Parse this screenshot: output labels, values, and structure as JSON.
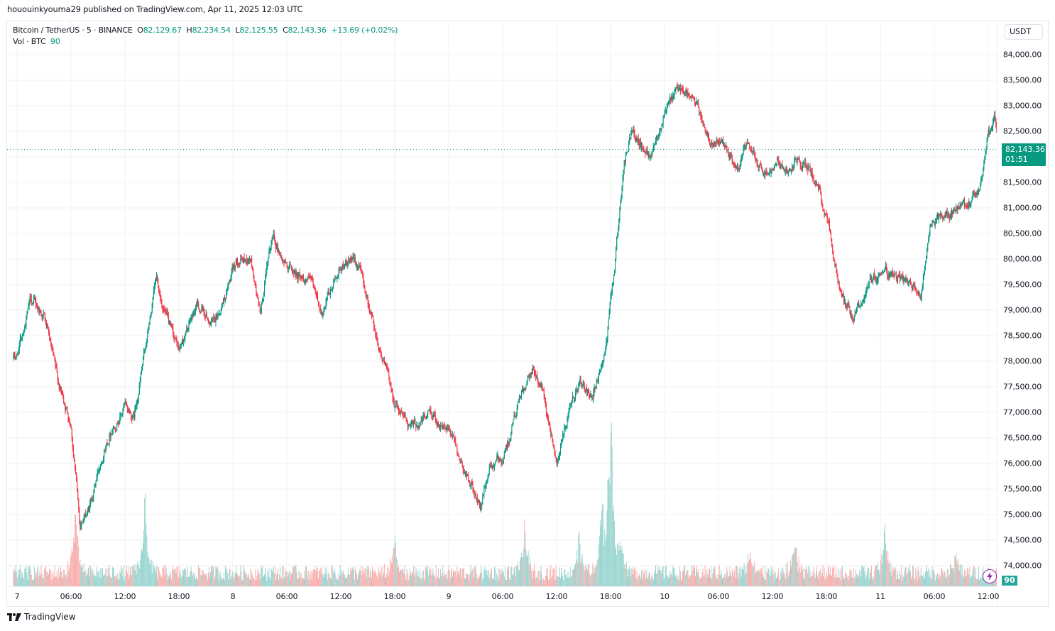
{
  "header": {
    "publish_line": "hououinkyouma29 published on TradingView.com, Apr 11, 2025 12:03 UTC"
  },
  "legend": {
    "symbol": "Bitcoin / TetherUS · 5 · BINANCE",
    "open_label": "O",
    "open": "82,129.67",
    "high_label": "H",
    "high": "82,234.54",
    "low_label": "L",
    "low": "82,125.55",
    "close_label": "C",
    "close": "82,143.36",
    "change": "+13.69 (+0.02%)",
    "vol_label": "Vol · BTC",
    "vol_value": "90"
  },
  "price_axis": {
    "currency": "USDT",
    "labels": [
      "84,000.00",
      "83,500.00",
      "83,000.00",
      "82,500.00",
      "82,000.00",
      "81,500.00",
      "81,000.00",
      "80,500.00",
      "80,000.00",
      "79,500.00",
      "79,000.00",
      "78,500.00",
      "78,000.00",
      "77,500.00",
      "77,000.00",
      "76,500.00",
      "76,000.00",
      "75,500.00",
      "75,000.00",
      "74,500.00",
      "74,000.00"
    ],
    "last_price": "82,143.36",
    "countdown": "01:51",
    "volume_badge": "90"
  },
  "time_axis": {
    "labels": [
      "7",
      "06:00",
      "12:00",
      "18:00",
      "8",
      "06:00",
      "12:00",
      "18:00",
      "9",
      "06:00",
      "12:00",
      "18:00",
      "10",
      "06:00",
      "12:00",
      "18:00",
      "11",
      "06:00",
      "12:00"
    ]
  },
  "colors": {
    "up": "#089981",
    "down": "#F23645",
    "vol_up": "#92D2CC",
    "vol_down": "#F7A9A7",
    "grid": "#f0f1f3",
    "last_price_bg": "#089981"
  },
  "footer": {
    "brand": "TradingView"
  },
  "chart_data": {
    "type": "candlestick",
    "title": "Bitcoin / TetherUS · 5 · BINANCE",
    "interval": "5 min",
    "xlabel": "",
    "ylabel": "USDT",
    "ylim": [
      73800,
      84300
    ],
    "grid": true,
    "last": {
      "open": 82129.67,
      "high": 82234.54,
      "low": 82125.55,
      "close": 82143.36,
      "change": 13.69,
      "change_pct": 0.02,
      "volume": 90
    },
    "x_ticks": [
      "7",
      "06:00",
      "12:00",
      "18:00",
      "8",
      "06:00",
      "12:00",
      "18:00",
      "9",
      "06:00",
      "12:00",
      "18:00",
      "10",
      "06:00",
      "12:00",
      "18:00",
      "11",
      "06:00",
      "12:00"
    ],
    "y_ticks": [
      74000,
      74500,
      75000,
      75500,
      76000,
      76500,
      77000,
      77500,
      78000,
      78500,
      79000,
      79500,
      80000,
      80500,
      81000,
      81500,
      82000,
      82500,
      83000,
      83500,
      84000
    ],
    "price_path_waypoints": {
      "note": "approximate closes read from chart; t = hours since Apr 7 00:00 UTC",
      "t": [
        -1.0,
        0.0,
        1.5,
        3.0,
        4.5,
        6.0,
        7.0,
        8.0,
        9.5,
        10.5,
        12.0,
        13.0,
        14.5,
        15.5,
        17.0,
        18.0,
        20.0,
        22.0,
        24.5,
        26.0,
        27.0,
        28.5,
        29.5,
        31.0,
        32.5,
        34.0,
        36.0,
        38.0,
        40.0,
        42.0,
        44.0,
        46.0,
        48.0,
        50.0,
        51.5,
        52.5,
        54.0,
        56.0,
        57.5,
        58.5,
        60.0,
        61.5,
        62.5,
        64.0,
        65.5,
        66.5,
        67.5,
        68.5,
        69.5,
        70.5,
        72.0,
        74.0,
        75.5,
        77.0,
        78.5,
        80.0,
        81.0,
        82.5,
        83.5,
        84.5,
        85.5,
        86.5,
        88.0,
        90.0,
        91.5,
        93.0,
        94.5,
        96.0,
        97.5,
        99.0,
        100.5,
        101.5,
        102.5,
        104.0,
        105.5,
        107.0,
        108.0,
        108.8,
        109.3
      ],
      "close": [
        78000,
        78100,
        79200,
        78900,
        77600,
        76800,
        74800,
        75100,
        76200,
        76700,
        77100,
        76900,
        78500,
        79600,
        78600,
        78200,
        79100,
        78700,
        80000,
        80000,
        78900,
        80500,
        80000,
        79700,
        79600,
        78900,
        79900,
        79900,
        78500,
        77200,
        76700,
        77000,
        76600,
        75800,
        75100,
        75900,
        76100,
        77300,
        77800,
        77400,
        76100,
        77000,
        77600,
        77200,
        78300,
        80000,
        81800,
        82600,
        82200,
        82100,
        82900,
        83400,
        83000,
        82400,
        82200,
        81700,
        82200,
        81900,
        81700,
        82050,
        81700,
        81900,
        81800,
        80900,
        79400,
        78900,
        79400,
        79800,
        79700,
        79500,
        79300,
        80600,
        80800,
        80900,
        81000,
        81300,
        82400,
        82700,
        82143
      ]
    },
    "volume_profile": {
      "baseline_btc": 15,
      "spikes_t": [
        6.5,
        14.2,
        42.0,
        56.5,
        62.5,
        65.0,
        66.0,
        67.2,
        81.5,
        86.5,
        96.5,
        104.5
      ],
      "spikes_rel": [
        0.9,
        1.0,
        0.45,
        0.6,
        0.5,
        1.0,
        2.35,
        0.5,
        0.35,
        0.45,
        0.55,
        0.25
      ]
    }
  }
}
